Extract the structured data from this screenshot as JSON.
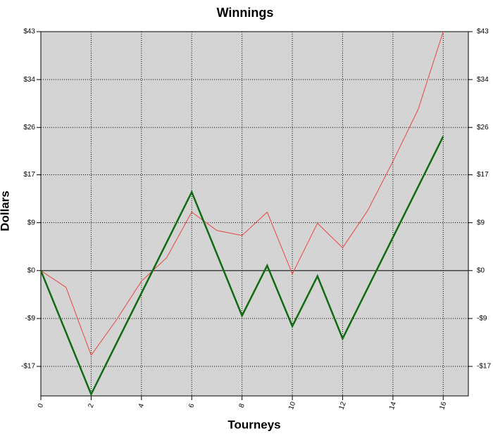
{
  "chart_data": {
    "type": "line",
    "title": "Winnings",
    "xlabel": "Tourneys",
    "ylabel": "Dollars",
    "xlim": [
      0,
      17
    ],
    "xticks": [
      0,
      2,
      4,
      6,
      8,
      10,
      12,
      14,
      16
    ],
    "ylim": [
      -22.5,
      42.9
    ],
    "yticks": [
      {
        "value": -17.2,
        "label": "-$17"
      },
      {
        "value": -8.6,
        "label": "-$9"
      },
      {
        "value": 0,
        "label": "$0"
      },
      {
        "value": 8.6,
        "label": "$9"
      },
      {
        "value": 17.2,
        "label": "$17"
      },
      {
        "value": 25.7,
        "label": "$26"
      },
      {
        "value": 34.3,
        "label": "$34"
      },
      {
        "value": 42.9,
        "label": "$43"
      }
    ],
    "grid": true,
    "series": [
      {
        "color": "#e8473f",
        "width": 1,
        "x": [
          0,
          1,
          2,
          3,
          4,
          5,
          6,
          7,
          8,
          9,
          10,
          11,
          12,
          13,
          14,
          15,
          16
        ],
        "values": [
          0,
          -3.0,
          -15.2,
          -8.9,
          -1.9,
          2.3,
          10.5,
          7.2,
          6.3,
          10.5,
          -0.6,
          8.5,
          4.1,
          10.8,
          19.6,
          28.9,
          42.9
        ]
      },
      {
        "color": "#0e6b12",
        "width": 2.5,
        "x": [
          0,
          2,
          6,
          8,
          9,
          10,
          11,
          12,
          16
        ],
        "values": [
          0,
          -22.2,
          14.1,
          -8.1,
          0.9,
          -10.0,
          -1.0,
          -12.2,
          24.1
        ]
      }
    ]
  }
}
